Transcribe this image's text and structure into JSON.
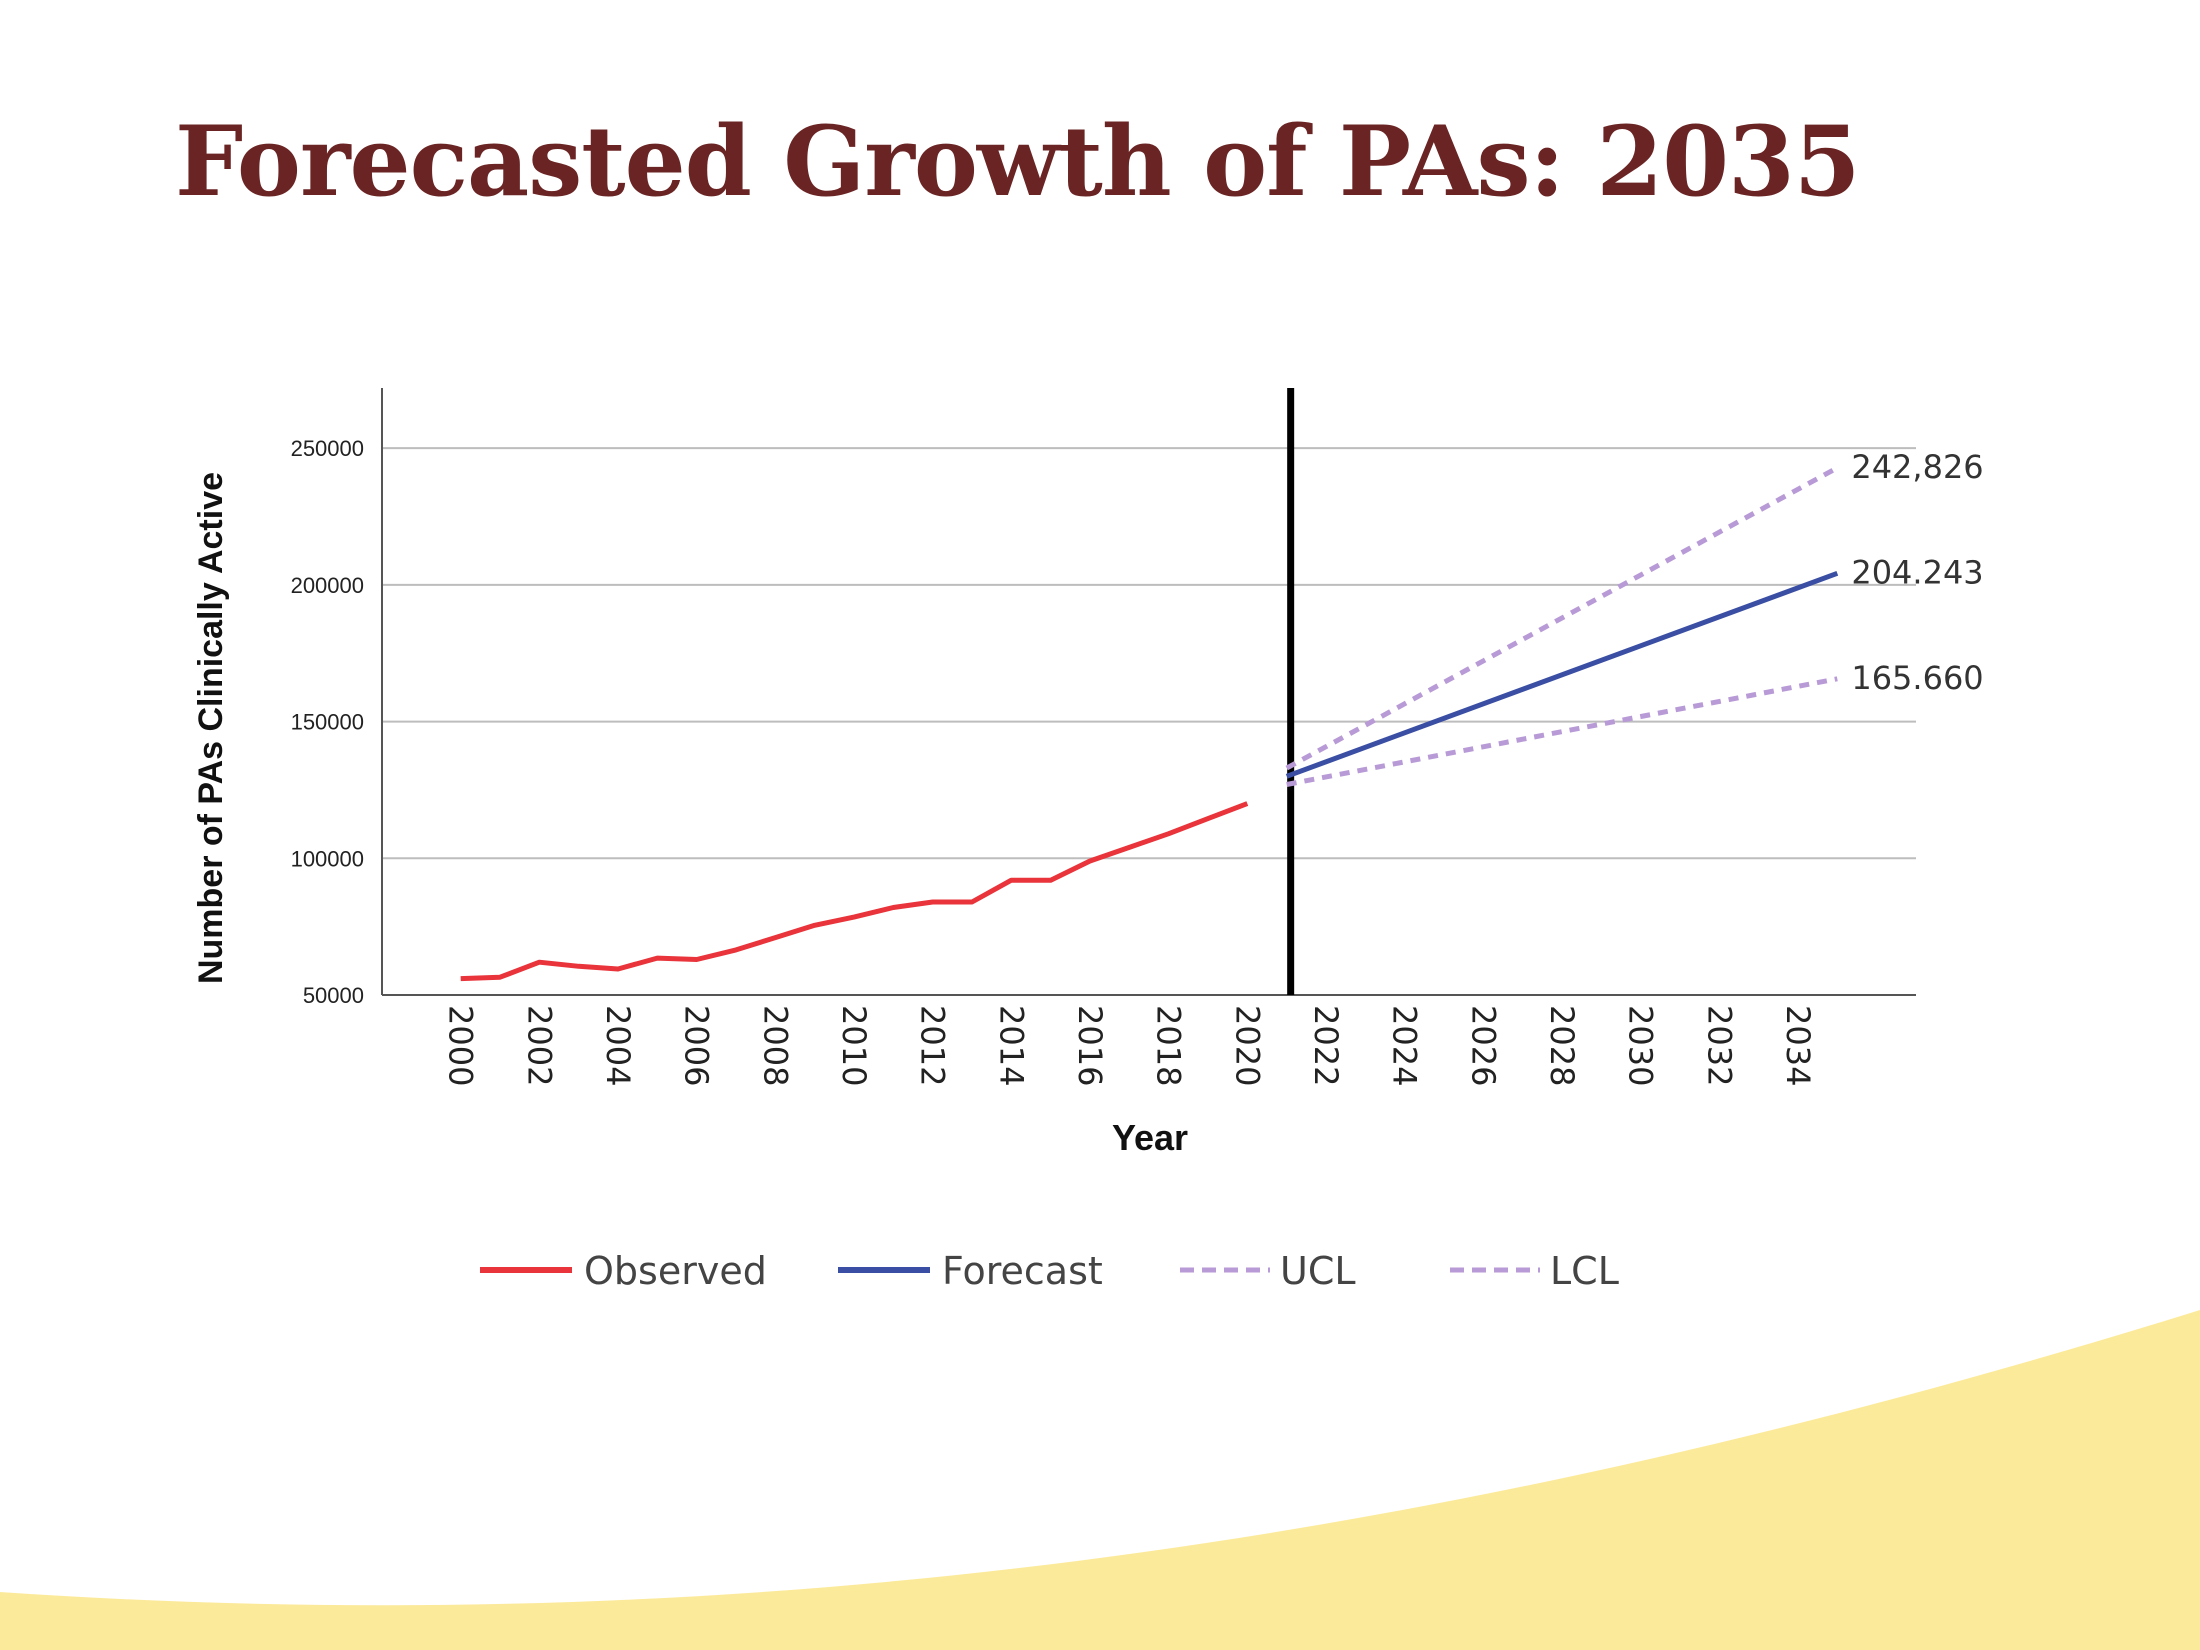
{
  "slide": {
    "title": "Forecasted Growth of PAs: 2035"
  },
  "colors": {
    "title": "#6b2424",
    "observed": "#e8343a",
    "forecast": "#3a4fa3",
    "confidence": "#b89ad6",
    "divider": "#000000",
    "wave": "#fcea9b"
  },
  "chart_data": {
    "type": "line",
    "xlabel": "Year",
    "ylabel": "Number of PAs Clinically Active",
    "xlim": [
      1998,
      2037
    ],
    "ylim": [
      50000,
      272000
    ],
    "yticks": [
      50000,
      100000,
      150000,
      200000,
      250000
    ],
    "xticks": [
      2000,
      2002,
      2004,
      2006,
      2008,
      2010,
      2012,
      2014,
      2016,
      2018,
      2020,
      2022,
      2024,
      2026,
      2028,
      2030,
      2032,
      2034
    ],
    "grid": "horizontal",
    "divider_year": 2021,
    "legend_position": "bottom",
    "series": [
      {
        "name": "Observed",
        "style": "solid",
        "x": [
          2000,
          2001,
          2002,
          2003,
          2004,
          2005,
          2006,
          2007,
          2008,
          2009,
          2010,
          2011,
          2012,
          2013,
          2014,
          2015,
          2016,
          2017,
          2018,
          2019,
          2020
        ],
        "values": [
          56000,
          56500,
          62000,
          60500,
          59500,
          63500,
          63000,
          66500,
          71000,
          75500,
          78500,
          82000,
          84000,
          84000,
          92000,
          92000,
          99000,
          104000,
          109000,
          114500,
          120000
        ]
      },
      {
        "name": "Forecast",
        "style": "solid",
        "x": [
          2021,
          2035
        ],
        "values": [
          130000,
          204243
        ]
      },
      {
        "name": "UCL",
        "style": "dashed",
        "x": [
          2021,
          2035
        ],
        "values": [
          133000,
          242826
        ]
      },
      {
        "name": "LCL",
        "style": "dashed",
        "x": [
          2021,
          2035
        ],
        "values": [
          127000,
          165660
        ]
      }
    ],
    "annotations": [
      {
        "text": "242,826",
        "x": 2035,
        "y": 242826
      },
      {
        "text": "204.243",
        "x": 2035,
        "y": 204243
      },
      {
        "text": "165.660",
        "x": 2035,
        "y": 165660
      }
    ]
  }
}
